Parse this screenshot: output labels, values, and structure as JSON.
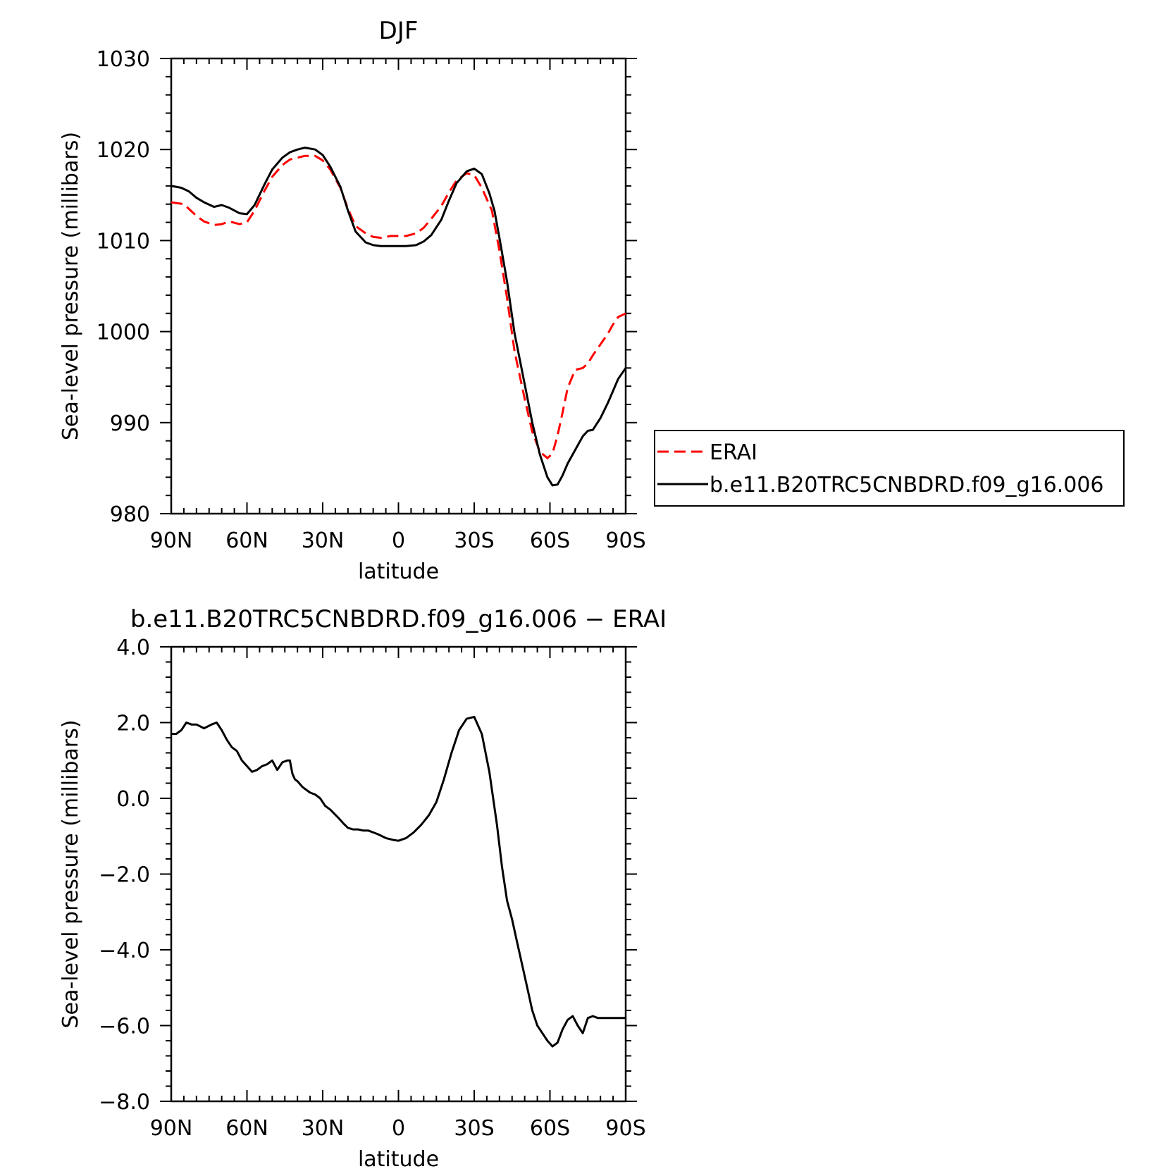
{
  "chart_data": [
    {
      "type": "line",
      "title": "DJF",
      "xlabel": "latitude",
      "ylabel": "Sea-level pressure (millibars)",
      "xlim": [
        90,
        -90
      ],
      "ylim": [
        980,
        1030
      ],
      "x_ticks": [
        90,
        60,
        30,
        0,
        -30,
        -60,
        -90
      ],
      "x_tick_labels": [
        "90N",
        "60N",
        "30N",
        "0",
        "30S",
        "60S",
        "90S"
      ],
      "y_ticks": [
        980,
        990,
        1000,
        1010,
        1020,
        1030
      ],
      "y_tick_labels": [
        "980",
        "990",
        "1000",
        "1010",
        "1020",
        "1030"
      ],
      "legend_position": "right",
      "series": [
        {
          "name": "ERAI",
          "color": "#ff0000",
          "dash": "dashed",
          "x": [
            90,
            85,
            80,
            77,
            73,
            70,
            67,
            63,
            60,
            57,
            53,
            50,
            46,
            43,
            40,
            37,
            33,
            30,
            27,
            23,
            20,
            17,
            13,
            10,
            7,
            3,
            0,
            -3,
            -7,
            -10,
            -13,
            -17,
            -20,
            -23,
            -27,
            -30,
            -33,
            -37,
            -40,
            -43,
            -46,
            -50,
            -53,
            -56,
            -59,
            -61,
            -63,
            -65,
            -67,
            -70,
            -73,
            -75,
            -77,
            -80,
            -83,
            -85,
            -87,
            -90
          ],
          "y": [
            1014.2,
            1014.0,
            1012.7,
            1012.1,
            1011.7,
            1011.8,
            1012.1,
            1011.8,
            1012.0,
            1013.3,
            1015.5,
            1017.0,
            1018.3,
            1018.9,
            1019.1,
            1019.3,
            1019.3,
            1018.8,
            1017.8,
            1015.8,
            1013.5,
            1011.6,
            1010.8,
            1010.4,
            1010.3,
            1010.5,
            1010.5,
            1010.5,
            1010.8,
            1011.4,
            1012.4,
            1013.8,
            1015.3,
            1016.6,
            1017.4,
            1017.2,
            1015.8,
            1013.3,
            1008.9,
            1003.7,
            997.8,
            992.6,
            989.0,
            986.8,
            986.1,
            986.6,
            988.6,
            991.1,
            993.8,
            995.8,
            996.0,
            996.5,
            997.4,
            998.6,
            999.8,
            1000.8,
            1001.6,
            1002.0
          ]
        },
        {
          "name": "b.e11.B20TRC5CNBDRD.f09_g16.006",
          "color": "#000000",
          "dash": "solid",
          "x": [
            90,
            86,
            83,
            80,
            77,
            73,
            70,
            67,
            63,
            60,
            57,
            53,
            50,
            46,
            43,
            40,
            37,
            33,
            30,
            27,
            23,
            20,
            17,
            13,
            10,
            7,
            3,
            0,
            -3,
            -7,
            -10,
            -13,
            -17,
            -20,
            -23,
            -27,
            -30,
            -33,
            -36,
            -38,
            -40,
            -43,
            -46,
            -50,
            -53,
            -56,
            -59,
            -61,
            -63,
            -65,
            -67,
            -70,
            -73,
            -75,
            -77,
            -80,
            -83,
            -85,
            -87,
            -90
          ],
          "y": [
            1016.0,
            1015.8,
            1015.4,
            1014.7,
            1014.2,
            1013.7,
            1013.9,
            1013.6,
            1013.0,
            1012.9,
            1013.9,
            1016.2,
            1017.8,
            1019.1,
            1019.7,
            1020.0,
            1020.2,
            1020.0,
            1019.4,
            1018.1,
            1015.9,
            1013.3,
            1011.0,
            1009.8,
            1009.5,
            1009.4,
            1009.4,
            1009.4,
            1009.4,
            1009.5,
            1009.9,
            1010.6,
            1012.3,
            1014.4,
            1016.3,
            1017.6,
            1017.9,
            1017.3,
            1015.2,
            1013.3,
            1010.3,
            1005.5,
            999.8,
            994.2,
            990.0,
            986.5,
            984.0,
            983.1,
            983.2,
            984.2,
            985.5,
            987.0,
            988.5,
            989.1,
            989.2,
            990.5,
            992.2,
            993.5,
            994.8,
            996.0
          ]
        }
      ]
    },
    {
      "type": "line",
      "title": "b.e11.B20TRC5CNBDRD.f09_g16.006 − ERAI",
      "xlabel": "latitude",
      "ylabel": "Sea-level pressure (millibars)",
      "xlim": [
        90,
        -90
      ],
      "ylim": [
        -8,
        4
      ],
      "x_ticks": [
        90,
        60,
        30,
        0,
        -30,
        -60,
        -90
      ],
      "x_tick_labels": [
        "90N",
        "60N",
        "30N",
        "0",
        "30S",
        "60S",
        "90S"
      ],
      "y_ticks": [
        -8,
        -6,
        -4,
        -2,
        0,
        2,
        4
      ],
      "y_tick_labels": [
        "−8.0",
        "−6.0",
        "−4.0",
        "−2.0",
        "0.0",
        "2.0",
        "4.0"
      ],
      "series": [
        {
          "color": "#000000",
          "dash": "solid",
          "x": [
            90,
            88,
            86,
            84,
            82,
            80,
            77,
            74,
            72,
            70,
            68,
            66,
            64,
            62,
            60,
            58,
            56,
            54,
            52,
            50,
            48,
            46,
            44,
            43,
            42,
            41,
            40,
            38,
            36,
            35,
            33,
            31,
            29,
            27,
            24,
            22,
            20,
            18,
            16,
            14,
            12,
            10,
            8,
            5,
            2,
            0,
            -3,
            -6,
            -9,
            -12,
            -15,
            -18,
            -21,
            -24,
            -27,
            -30,
            -33,
            -36,
            -39,
            -41,
            -43,
            -45,
            -47,
            -49,
            -51,
            -53,
            -55,
            -57,
            -59,
            -61,
            -63,
            -65,
            -67,
            -69,
            -71,
            -73,
            -75,
            -77,
            -79,
            -81,
            -83,
            -85,
            -87,
            -89,
            -90
          ],
          "y": [
            1.7,
            1.7,
            1.8,
            2.0,
            1.95,
            1.95,
            1.85,
            1.95,
            2.0,
            1.8,
            1.55,
            1.35,
            1.25,
            1.0,
            0.85,
            0.7,
            0.75,
            0.85,
            0.9,
            1.0,
            0.75,
            0.95,
            1.0,
            1.0,
            0.65,
            0.5,
            0.45,
            0.3,
            0.2,
            0.15,
            0.1,
            0.0,
            -0.2,
            -0.3,
            -0.5,
            -0.65,
            -0.78,
            -0.82,
            -0.82,
            -0.85,
            -0.85,
            -0.9,
            -0.95,
            -1.05,
            -1.1,
            -1.12,
            -1.05,
            -0.9,
            -0.7,
            -0.45,
            -0.1,
            0.5,
            1.2,
            1.8,
            2.1,
            2.15,
            1.7,
            0.7,
            -0.7,
            -1.8,
            -2.7,
            -3.2,
            -3.8,
            -4.4,
            -5.0,
            -5.6,
            -6.0,
            -6.2,
            -6.4,
            -6.55,
            -6.45,
            -6.1,
            -5.85,
            -5.75,
            -6.0,
            -6.2,
            -5.8,
            -5.75,
            -5.8,
            -5.8,
            -5.8,
            -5.8,
            -5.8,
            -5.8,
            -5.8
          ]
        }
      ]
    }
  ]
}
